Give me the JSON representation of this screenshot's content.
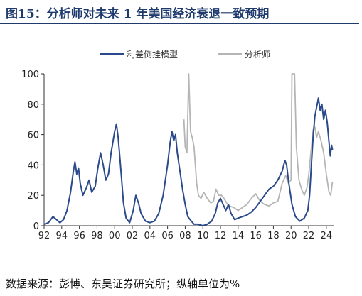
{
  "header": {
    "title": "图15：分析师对未来 1 年美国经济衰退一致预期"
  },
  "footer": {
    "source": "数据来源：彭博、东吴证券研究所；纵轴单位为%"
  },
  "colors": {
    "model": "#2b4a8b",
    "analyst": "#b5b5b5",
    "axis": "#333333"
  },
  "chart_data": {
    "type": "line",
    "title": "",
    "xlabel": "",
    "ylabel": "",
    "xlim": [
      1992,
      2024.9
    ],
    "ylim": [
      0,
      100
    ],
    "x_tick_values": [
      1992,
      1994,
      1996,
      1998,
      2000,
      2002,
      2004,
      2006,
      2008,
      2010,
      2012,
      2014,
      2016,
      2018,
      2020,
      2022,
      2024
    ],
    "x_tick_labels": [
      "92",
      "94",
      "96",
      "98",
      "00",
      "02",
      "04",
      "06",
      "08",
      "10",
      "12",
      "14",
      "16",
      "18",
      "20",
      "22",
      "24"
    ],
    "y_ticks": [
      0,
      20,
      40,
      60,
      80,
      100
    ],
    "legend_position": "top",
    "grid": false,
    "series": [
      {
        "name": "利差倒挂模型",
        "points": [
          [
            1992.0,
            1
          ],
          [
            1992.5,
            2
          ],
          [
            1993.0,
            6
          ],
          [
            1993.4,
            4
          ],
          [
            1993.8,
            2
          ],
          [
            1994.2,
            4
          ],
          [
            1994.6,
            10
          ],
          [
            1995.0,
            22
          ],
          [
            1995.3,
            35
          ],
          [
            1995.5,
            42
          ],
          [
            1995.7,
            34
          ],
          [
            1995.9,
            38
          ],
          [
            1996.1,
            28
          ],
          [
            1996.4,
            20
          ],
          [
            1996.8,
            25
          ],
          [
            1997.1,
            30
          ],
          [
            1997.4,
            22
          ],
          [
            1997.8,
            26
          ],
          [
            1998.1,
            38
          ],
          [
            1998.4,
            48
          ],
          [
            1998.7,
            40
          ],
          [
            1999.0,
            30
          ],
          [
            1999.3,
            34
          ],
          [
            1999.6,
            48
          ],
          [
            1999.8,
            55
          ],
          [
            2000.0,
            62
          ],
          [
            2000.2,
            67
          ],
          [
            2000.4,
            58
          ],
          [
            2000.6,
            44
          ],
          [
            2000.8,
            30
          ],
          [
            2001.0,
            15
          ],
          [
            2001.3,
            5
          ],
          [
            2001.7,
            2
          ],
          [
            2002.1,
            10
          ],
          [
            2002.4,
            20
          ],
          [
            2002.7,
            15
          ],
          [
            2003.0,
            8
          ],
          [
            2003.5,
            3
          ],
          [
            2004.0,
            2
          ],
          [
            2004.5,
            3
          ],
          [
            2005.0,
            8
          ],
          [
            2005.5,
            20
          ],
          [
            2006.0,
            40
          ],
          [
            2006.3,
            55
          ],
          [
            2006.5,
            62
          ],
          [
            2006.7,
            56
          ],
          [
            2006.9,
            60
          ],
          [
            2007.1,
            48
          ],
          [
            2007.4,
            36
          ],
          [
            2007.7,
            24
          ],
          [
            2008.0,
            14
          ],
          [
            2008.3,
            6
          ],
          [
            2008.7,
            3
          ],
          [
            2009.0,
            1
          ],
          [
            2009.5,
            1
          ],
          [
            2010.0,
            0
          ],
          [
            2010.5,
            1
          ],
          [
            2011.0,
            3
          ],
          [
            2011.4,
            8
          ],
          [
            2011.7,
            15
          ],
          [
            2012.0,
            18
          ],
          [
            2012.3,
            14
          ],
          [
            2012.6,
            10
          ],
          [
            2012.9,
            14
          ],
          [
            2013.2,
            8
          ],
          [
            2013.6,
            4
          ],
          [
            2014.0,
            5
          ],
          [
            2014.5,
            6
          ],
          [
            2015.0,
            7
          ],
          [
            2015.5,
            9
          ],
          [
            2016.0,
            12
          ],
          [
            2016.5,
            16
          ],
          [
            2017.0,
            20
          ],
          [
            2017.5,
            24
          ],
          [
            2018.0,
            26
          ],
          [
            2018.5,
            30
          ],
          [
            2019.0,
            36
          ],
          [
            2019.3,
            43
          ],
          [
            2019.5,
            40
          ],
          [
            2019.7,
            30
          ],
          [
            2019.9,
            22
          ],
          [
            2020.1,
            14
          ],
          [
            2020.5,
            6
          ],
          [
            2021.0,
            3
          ],
          [
            2021.5,
            5
          ],
          [
            2021.9,
            10
          ],
          [
            2022.1,
            20
          ],
          [
            2022.3,
            40
          ],
          [
            2022.5,
            58
          ],
          [
            2022.7,
            72
          ],
          [
            2022.9,
            78
          ],
          [
            2023.1,
            84
          ],
          [
            2023.3,
            76
          ],
          [
            2023.5,
            80
          ],
          [
            2023.7,
            70
          ],
          [
            2023.9,
            76
          ],
          [
            2024.1,
            68
          ],
          [
            2024.3,
            55
          ],
          [
            2024.45,
            46
          ],
          [
            2024.6,
            53
          ],
          [
            2024.7,
            50
          ]
        ]
      },
      {
        "name": "分析师",
        "points": [
          [
            2007.85,
            70
          ],
          [
            2008.0,
            52
          ],
          [
            2008.2,
            48
          ],
          [
            2008.4,
            100
          ],
          [
            2008.6,
            62
          ],
          [
            2008.8,
            58
          ],
          [
            2009.0,
            52
          ],
          [
            2009.2,
            36
          ],
          [
            2009.3,
            28
          ],
          [
            2009.5,
            20
          ],
          [
            2009.8,
            18
          ],
          [
            2010.1,
            22
          ],
          [
            2010.5,
            18
          ],
          [
            2010.9,
            15
          ],
          [
            2011.2,
            16
          ],
          [
            2011.5,
            24
          ],
          [
            2011.8,
            20
          ],
          [
            2012.1,
            20
          ],
          [
            2012.4,
            18
          ],
          [
            2012.7,
            15
          ],
          [
            2013.0,
            13
          ],
          [
            2013.5,
            12
          ],
          [
            2014.0,
            10
          ],
          [
            2014.5,
            12
          ],
          [
            2015.0,
            14
          ],
          [
            2015.5,
            18
          ],
          [
            2016.0,
            21
          ],
          [
            2016.5,
            16
          ],
          [
            2017.0,
            14
          ],
          [
            2017.5,
            13
          ],
          [
            2018.0,
            15
          ],
          [
            2018.5,
            16
          ],
          [
            2019.0,
            28
          ],
          [
            2019.4,
            33
          ],
          [
            2019.7,
            28
          ],
          [
            2020.0,
            30
          ],
          [
            2020.1,
            100
          ],
          [
            2020.4,
            100
          ],
          [
            2020.6,
            52
          ],
          [
            2020.9,
            30
          ],
          [
            2021.2,
            24
          ],
          [
            2021.5,
            20
          ],
          [
            2021.8,
            25
          ],
          [
            2022.0,
            33
          ],
          [
            2022.2,
            45
          ],
          [
            2022.5,
            63
          ],
          [
            2022.7,
            65
          ],
          [
            2022.9,
            58
          ],
          [
            2023.1,
            62
          ],
          [
            2023.4,
            56
          ],
          [
            2023.7,
            48
          ],
          [
            2024.0,
            34
          ],
          [
            2024.3,
            22
          ],
          [
            2024.5,
            20
          ],
          [
            2024.7,
            29
          ]
        ]
      }
    ]
  }
}
